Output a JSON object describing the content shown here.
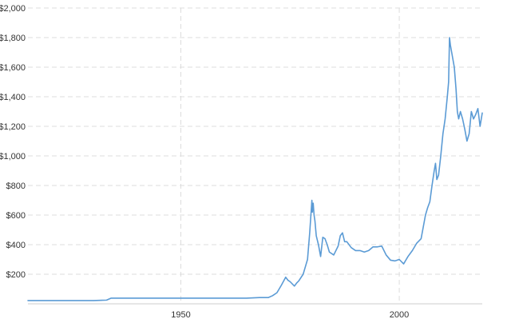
{
  "chart_data": {
    "type": "line",
    "title": "",
    "xlabel": "",
    "ylabel": "",
    "xlim": [
      1915,
      2019
    ],
    "ylim": [
      0,
      2000
    ],
    "y_ticks": [
      200,
      400,
      600,
      800,
      1000,
      1200,
      1400,
      1600,
      1800,
      2000
    ],
    "y_tick_labels": [
      "$200",
      "$400",
      "$600",
      "$800",
      "$1,000",
      "$1,200",
      "$1,400",
      "$1,600",
      "$1,800",
      "$2,000"
    ],
    "x_ticks": [
      1950,
      2000
    ],
    "x_tick_labels": [
      "1950",
      "2000"
    ],
    "grid": true,
    "line_color": "#5b9bd5",
    "series": [
      {
        "x": [
          1915,
          1920,
          1925,
          1930,
          1933,
          1934,
          1940,
          1945,
          1950,
          1955,
          1960,
          1965,
          1968,
          1970,
          1971,
          1972,
          1973,
          1974,
          1974.5,
          1975,
          1976,
          1976.5,
          1977,
          1978,
          1979,
          1979.5,
          1980,
          1980.1,
          1980.3,
          1980.5,
          1980.7,
          1981,
          1981.5,
          1982,
          1982.5,
          1983,
          1983.5,
          1984,
          1985,
          1985.5,
          1986,
          1986.5,
          1987,
          1987.5,
          1988,
          1989,
          1990,
          1991,
          1992,
          1993,
          1994,
          1995,
          1996,
          1997,
          1998,
          1999,
          2000,
          2001,
          2002,
          2003,
          2004,
          2005,
          2006,
          2006.5,
          2007,
          2007.5,
          2008,
          2008.3,
          2008.6,
          2009,
          2009.5,
          2010,
          2010.5,
          2011,
          2011.3,
          2011.5,
          2011.7,
          2012,
          2012.3,
          2012.6,
          2013,
          2013.3,
          2013.6,
          2014,
          2014.5,
          2015,
          2015.5,
          2016,
          2016.5,
          2017,
          2017.5,
          2018,
          2018.5,
          2019
        ],
        "y": [
          22,
          22,
          22,
          22,
          25,
          38,
          38,
          38,
          38,
          38,
          38,
          38,
          42,
          42,
          55,
          75,
          125,
          180,
          160,
          150,
          120,
          140,
          155,
          200,
          300,
          480,
          700,
          620,
          680,
          600,
          560,
          460,
          400,
          320,
          450,
          440,
          400,
          350,
          330,
          360,
          390,
          460,
          480,
          420,
          420,
          380,
          360,
          360,
          350,
          360,
          385,
          385,
          390,
          330,
          295,
          290,
          300,
          270,
          320,
          360,
          410,
          440,
          600,
          650,
          690,
          800,
          900,
          950,
          840,
          870,
          1000,
          1150,
          1250,
          1400,
          1500,
          1800,
          1750,
          1700,
          1650,
          1600,
          1450,
          1300,
          1250,
          1300,
          1250,
          1180,
          1100,
          1150,
          1300,
          1250,
          1280,
          1320,
          1200,
          1290
        ]
      }
    ]
  }
}
